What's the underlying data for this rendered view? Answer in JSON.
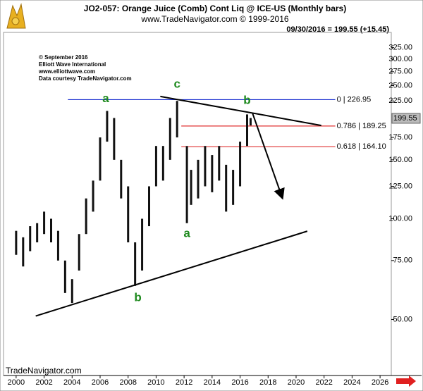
{
  "chart_data": {
    "type": "ohlc",
    "title": "JO2-057: Orange Juice (Comb) Cont Liq @ ICE-US  (Monthly bars)",
    "subtitle": "www.TradeNavigator.com © 1999-2016",
    "last_quote": "09/30/2016 = 199.55 (+15.45)",
    "last_price": {
      "value": 199.55,
      "label": "199.55"
    },
    "credits": [
      "© September 2016",
      "Elliott Wave International",
      "www.elliottwave.com",
      "Data courtesy TradeNavigator.com"
    ],
    "footer": "TradeNavigator.com",
    "log_scale": true,
    "color": "#111111",
    "xlim": [
      1999.1,
      2026.8
    ],
    "ylim": [
      34,
      357
    ],
    "xticks": [
      2000,
      2002,
      2004,
      2006,
      2008,
      2010,
      2012,
      2014,
      2016,
      2018,
      2020,
      2022,
      2024,
      2026
    ],
    "yticks": [
      {
        "value": 50,
        "label": "50.00"
      },
      {
        "value": 75,
        "label": "75.00"
      },
      {
        "value": 100,
        "label": "100.00"
      },
      {
        "value": 125,
        "label": "125.00"
      },
      {
        "value": 150,
        "label": "150.00"
      },
      {
        "value": 175,
        "label": "175.00"
      },
      {
        "value": 225,
        "label": "225.00"
      },
      {
        "value": 250,
        "label": "250.00"
      },
      {
        "value": 275,
        "label": "275.00"
      },
      {
        "value": 300,
        "label": "300.00"
      },
      {
        "value": 325,
        "label": "325.00"
      }
    ],
    "x": [
      2000.0,
      2000.5,
      2001.0,
      2001.5,
      2002.0,
      2002.5,
      2003.0,
      2003.5,
      2004.0,
      2004.5,
      2005.0,
      2005.5,
      2006.0,
      2006.5,
      2007.0,
      2007.5,
      2008.0,
      2008.5,
      2009.0,
      2009.5,
      2010.0,
      2010.5,
      2011.0,
      2011.5,
      2012.2,
      2012.5,
      2013.0,
      2013.5,
      2014.0,
      2014.5,
      2015.0,
      2015.5,
      2016.0,
      2016.5,
      2016.75
    ],
    "high": [
      92,
      88,
      95,
      97,
      105,
      100,
      92,
      75,
      66,
      90,
      115,
      130,
      175,
      210,
      200,
      150,
      125,
      85,
      100,
      125,
      165,
      165,
      200,
      225,
      165,
      140,
      150,
      165,
      155,
      165,
      145,
      140,
      170,
      205,
      200
    ],
    "low": [
      78,
      72,
      80,
      85,
      90,
      85,
      75,
      60,
      56,
      70,
      90,
      105,
      130,
      170,
      150,
      115,
      85,
      63,
      70,
      95,
      125,
      130,
      150,
      175,
      97,
      110,
      115,
      125,
      120,
      130,
      105,
      110,
      125,
      165,
      190
    ],
    "levels": [
      {
        "value": 226.95,
        "label": "0 | 226.95",
        "color": "#1a2fd0",
        "x": [
          2003.7,
          2022.8
        ]
      },
      {
        "value": 189.25,
        "label": "0.786 | 189.25",
        "color": "#e03030",
        "x": [
          2011.8,
          2022.8
        ]
      },
      {
        "value": 164.1,
        "label": "0.618 | 164.10",
        "color": "#e03030",
        "x": [
          2011.8,
          2022.8
        ]
      }
    ],
    "lines": [
      {
        "x": [
          2010.3,
          2021.8
        ],
        "y": [
          232,
          190
        ]
      },
      {
        "x": [
          2001.4,
          2020.8
        ],
        "y": [
          51.2,
          91.8
        ]
      },
      {
        "x": [
          2016.9,
          2019.0
        ],
        "y": [
          206,
          116
        ],
        "arrow": true
      }
    ],
    "wave_labels": [
      {
        "text": "a",
        "x": 2006.4,
        "y": 228
      },
      {
        "text": "b",
        "x": 2008.7,
        "y": 58
      },
      {
        "text": "c",
        "x": 2011.5,
        "y": 252
      },
      {
        "text": "a",
        "x": 2012.2,
        "y": 90
      },
      {
        "text": "b",
        "x": 2016.5,
        "y": 225
      }
    ]
  }
}
